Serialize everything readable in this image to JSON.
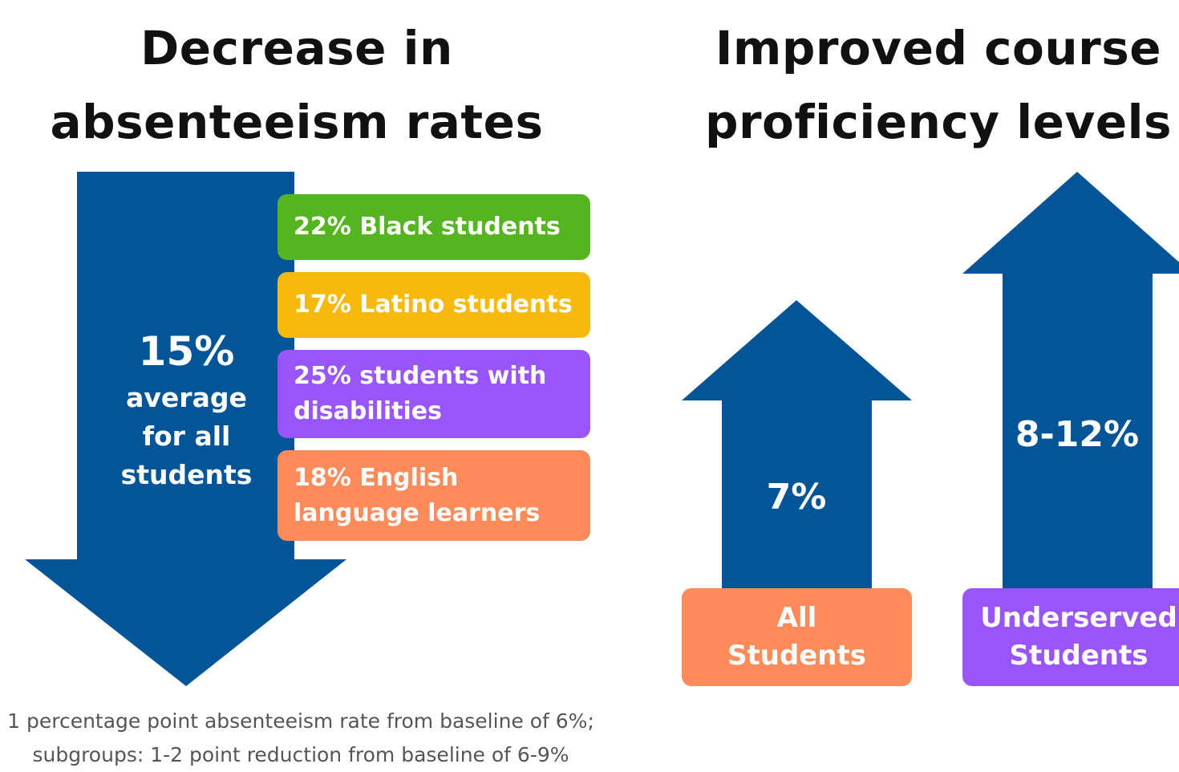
{
  "left_panel": {
    "title_line1": "Decrease in",
    "title_line2": "absenteeism rates",
    "average_percent": "15%",
    "average_line1": "average",
    "average_line2": "for all",
    "average_line3": "students",
    "subgroups": [
      {
        "label": "22% Black students",
        "color": "#55b520"
      },
      {
        "label": "17% Latino students",
        "color": "#f7b90c"
      },
      {
        "label": "25% students with disabilities",
        "color": "#9755fa"
      },
      {
        "label": "18% English language learners",
        "color": "#fe8b59"
      }
    ],
    "footnote_line1": "1 percentage point absenteeism rate from baseline of 6%;",
    "footnote_line2": "subgroups: 1-2 point reduction from baseline of 6-9%"
  },
  "right_panel": {
    "title_line1": "Improved course",
    "title_line2": "proficiency levels",
    "groups": [
      {
        "percent": "7%",
        "label_line1": "All",
        "label_line2": "Students",
        "color": "#fe8b59"
      },
      {
        "percent": "8-12%",
        "label_line1": "Underserved",
        "label_line2": "Students",
        "color": "#9755fa"
      }
    ]
  },
  "colors": {
    "arrow": "#035597",
    "heading": "#111111",
    "footnote": "#555555"
  }
}
